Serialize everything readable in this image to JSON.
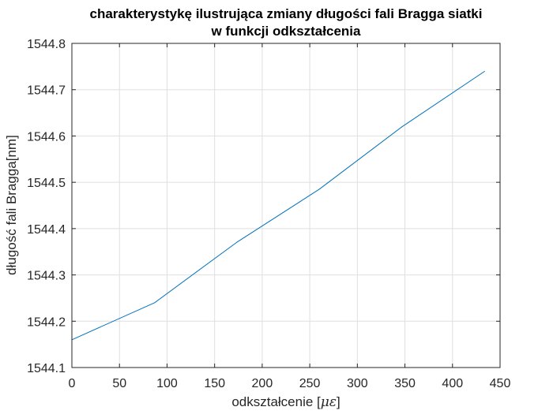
{
  "chart_data": {
    "type": "line",
    "title_lines": [
      "charakterystykę ilustrująca zmiany długości fali Bragga siatki",
      "w funkcji odkształcenia"
    ],
    "xlabel_prefix": "odkształcenie [",
    "xlabel_symbol": "με",
    "xlabel_suffix": "]",
    "ylabel": "długość fali Bragga[nm]",
    "xlim": [
      0,
      450
    ],
    "ylim": [
      1544.1,
      1544.8
    ],
    "xticks": [
      0,
      50,
      100,
      150,
      200,
      250,
      300,
      350,
      400,
      450
    ],
    "yticks": [
      1544.1,
      1544.2,
      1544.3,
      1544.4,
      1544.5,
      1544.6,
      1544.7,
      1544.8
    ],
    "xtick_labels": [
      "0",
      "50",
      "100",
      "150",
      "200",
      "250",
      "300",
      "350",
      "400",
      "450"
    ],
    "ytick_labels": [
      "1544.1",
      "1544.2",
      "1544.3",
      "1544.4",
      "1544.5",
      "1544.6",
      "1544.7",
      "1544.8"
    ],
    "grid": true,
    "series": [
      {
        "color": "#0072bd",
        "x": [
          0,
          87,
          173,
          260,
          347,
          434
        ],
        "y": [
          1544.16,
          1544.24,
          1544.37,
          1544.485,
          1544.62,
          1544.74
        ]
      }
    ]
  }
}
